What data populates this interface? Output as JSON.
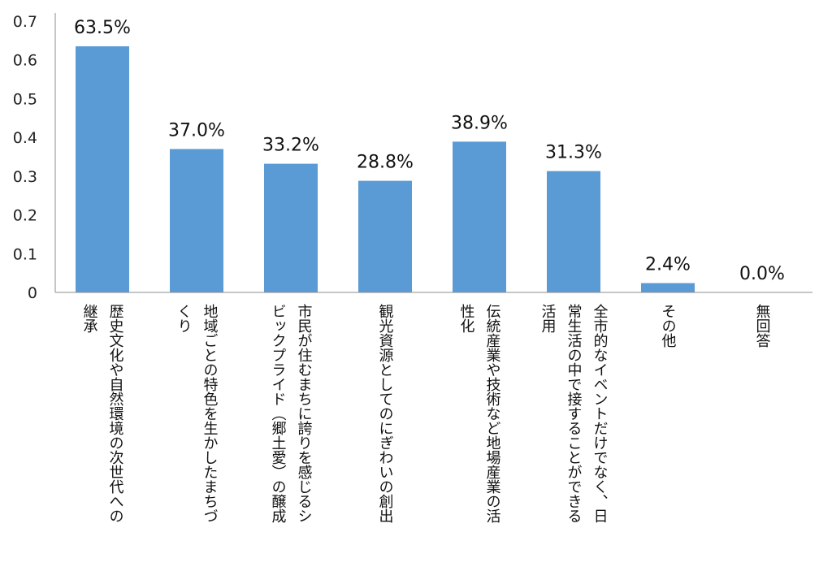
{
  "chart_data": {
    "type": "bar",
    "categories": [
      [
        "歴史文化や自然環境の次世代への",
        "継承"
      ],
      [
        "地域ごとの特色を生かしたまちづ",
        "くり"
      ],
      [
        "市民が住むまちに誇りを感じるシ",
        "ビックプライド（郷土愛）の醸成"
      ],
      [
        "観光資源としてのにぎわいの創出"
      ],
      [
        "伝統産業や技術など地場産業の活",
        "性化"
      ],
      [
        "全市的なイベントだけでなく、日",
        "常生活の中で接することができる",
        "活用"
      ],
      [
        "その他"
      ],
      [
        "無回答"
      ]
    ],
    "values": [
      0.635,
      0.37,
      0.332,
      0.288,
      0.389,
      0.313,
      0.024,
      0.0
    ],
    "data_labels": [
      "63.5%",
      "37.0%",
      "33.2%",
      "28.8%",
      "38.9%",
      "31.3%",
      "2.4%",
      "0.0%"
    ],
    "ylim": [
      0,
      0.7
    ],
    "yticks": [
      "0",
      "0.1",
      "0.2",
      "0.3",
      "0.4",
      "0.5",
      "0.6",
      "0.7"
    ],
    "ytick_values": [
      0,
      0.1,
      0.2,
      0.3,
      0.4,
      0.5,
      0.6,
      0.7
    ],
    "bar_color": "#5b9bd5",
    "grid": false,
    "legend": "none"
  }
}
